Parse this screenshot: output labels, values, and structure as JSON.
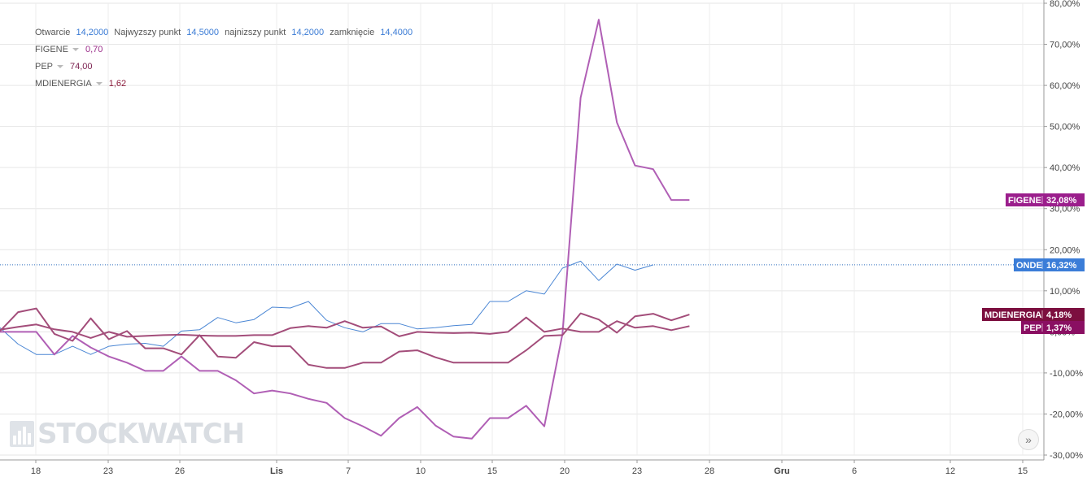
{
  "legend": {
    "ohlc": {
      "open_label": "Otwarcie",
      "open_value": "14,2000",
      "high_label": "Najwyzszy punkt",
      "high_value": "14,5000",
      "low_label": "najnizszy punkt",
      "low_value": "14,2000",
      "close_label": "zamknięcie",
      "close_value": "14,4000"
    },
    "items": [
      {
        "name": "FIGENE",
        "value": "0,70",
        "color": "#9b2d8a"
      },
      {
        "name": "PEP",
        "value": "74,00",
        "color": "#7a1f4e"
      },
      {
        "name": "MDIENERGIA",
        "value": "1,62",
        "color": "#8b1a3a"
      }
    ]
  },
  "watermark": "STOCKWATCH",
  "nav_button": "»",
  "chart_data": {
    "type": "line",
    "y_unit": "%",
    "ylim": [
      -30,
      80
    ],
    "y_ticks": [
      "80,00%",
      "70,00%",
      "60,00%",
      "50,00%",
      "40,00%",
      "30,00%",
      "20,00%",
      "10,00%",
      "0,00%",
      "-10,00%",
      "-20,00%",
      "-30,00%"
    ],
    "x_ticks": [
      "18",
      "23",
      "26",
      "Lis",
      "7",
      "10",
      "15",
      "20",
      "23",
      "28",
      "Gru",
      "6",
      "12",
      "15"
    ],
    "x_ticks_bold": [
      "Lis",
      "Gru"
    ],
    "grid": true,
    "current_value_line": 16.32,
    "series": [
      {
        "name": "ONDE",
        "color": "#4a86d4",
        "end_label": "16,32%",
        "values": [
          1.0,
          -3.0,
          -5.5,
          -5.5,
          -3.5,
          -5.5,
          -3.5,
          -3.0,
          -2.8,
          -3.5,
          0.2,
          0.5,
          3.5,
          2.2,
          3.0,
          6.0,
          5.8,
          7.4,
          2.8,
          1.0,
          0.0,
          2.0,
          2.0,
          0.7,
          1.0,
          1.5,
          1.8,
          7.4,
          7.4,
          10.0,
          9.2,
          15.5,
          17.2,
          12.5,
          16.5,
          15.0,
          16.3
        ]
      },
      {
        "name": "FIGENE",
        "color": "#b05fb5",
        "end_label": "32,08%",
        "values": [
          0.0,
          0.0,
          0.0,
          -5.5,
          -1.0,
          -3.8,
          -6.0,
          -7.5,
          -9.5,
          -9.5,
          -6.0,
          -9.5,
          -9.5,
          -11.8,
          -15.0,
          -14.3,
          -15.0,
          -16.3,
          -17.3,
          -21.0,
          -23.0,
          -25.3,
          -21.0,
          -18.3,
          -22.8,
          -25.5,
          -26.0,
          -21.0,
          -21.0,
          -18.0,
          -23.0,
          -0.5,
          57.0,
          76.0,
          51.0,
          40.5,
          39.6,
          32.1,
          32.1
        ]
      },
      {
        "name": "MDIENERGIA",
        "color": "#a34d7a",
        "end_label": "4,18%",
        "values": [
          0.2,
          4.8,
          5.7,
          -0.5,
          -2.2,
          3.3,
          -1.8,
          0.2,
          -4.0,
          -4.0,
          -5.5,
          -0.8,
          -6.0,
          -6.3,
          -2.5,
          -3.5,
          -3.5,
          -8.0,
          -8.8,
          -8.8,
          -7.5,
          -7.5,
          -4.8,
          -4.5,
          -6.2,
          -7.5,
          -7.5,
          -7.5,
          -7.5,
          -4.5,
          -1.0,
          -0.8,
          4.5,
          3.0,
          -0.2,
          3.8,
          4.4,
          2.8,
          4.2
        ]
      },
      {
        "name": "PEP",
        "color": "#a34d7a",
        "end_label": "1,37%",
        "values": [
          0.5,
          1.2,
          1.8,
          0.6,
          0.0,
          -1.5,
          0.0,
          -1.2,
          -1.0,
          -0.8,
          -0.7,
          -0.9,
          -1.0,
          -1.0,
          -0.8,
          -0.8,
          0.9,
          1.4,
          1.0,
          2.6,
          1.0,
          1.3,
          -1.1,
          0.0,
          -0.2,
          -0.3,
          -0.2,
          -0.5,
          0.0,
          3.5,
          0.0,
          0.8,
          0.0,
          0.0,
          2.6,
          1.0,
          1.4,
          0.4,
          1.4
        ]
      }
    ],
    "end_label_colors": {
      "FIGENE": "#9b1e8c",
      "ONDE": "#3b7dd8",
      "MDIENERGIA": "#7c0f3f",
      "PEP": "#8a0f62"
    }
  }
}
